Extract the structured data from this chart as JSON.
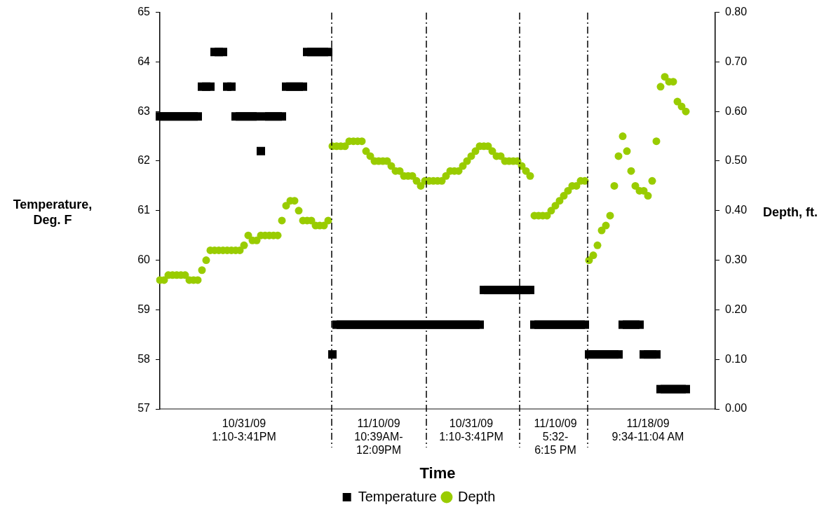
{
  "chart_data": {
    "type": "scatter",
    "xlabel": "Time",
    "ylabel": "Temperature,\nDeg. F",
    "y2label": "Depth, ft.",
    "categories": [
      null,
      null,
      null,
      null,
      null,
      null,
      null,
      null,
      null,
      null,
      null,
      null,
      null,
      null,
      null,
      null,
      null,
      null,
      null,
      null,
      "10/31/09\n1:10-3:41PM",
      null,
      null,
      null,
      null,
      null,
      null,
      null,
      null,
      null,
      null,
      null,
      null,
      null,
      null,
      null,
      null,
      null,
      null,
      null,
      null,
      null,
      null,
      null,
      null,
      null,
      null,
      null,
      null,
      null,
      null,
      null,
      "11/10/09\n10:39AM-\n12:09PM",
      null,
      null,
      null,
      null,
      null,
      null,
      null,
      null,
      null,
      null,
      null,
      null,
      null,
      null,
      null,
      null,
      null,
      null,
      null,
      null,
      null,
      "10/31/09\n1:10-3:41PM",
      null,
      null,
      null,
      null,
      null,
      null,
      null,
      null,
      null,
      null,
      null,
      null,
      null,
      null,
      null,
      null,
      null,
      null,
      null,
      "11/10/09\n5:32-\n6:15 PM",
      null,
      null,
      null,
      null,
      null,
      null,
      null,
      null,
      null,
      null,
      null,
      null,
      null,
      null,
      null,
      null,
      null,
      null,
      null,
      null,
      null,
      "11/18/09\n9:34-11:04 AM",
      null,
      null,
      null,
      null,
      null,
      null,
      null,
      null,
      null,
      null,
      null,
      null,
      null,
      null,
      null,
      null
    ],
    "series": [
      {
        "name": "Temperature",
        "color": "#000000",
        "marker": "square",
        "values": [
          62.9,
          62.9,
          62.9,
          62.9,
          62.9,
          62.9,
          62.9,
          62.9,
          62.9,
          62.9,
          63.5,
          63.5,
          63.5,
          64.2,
          64.2,
          64.2,
          63.5,
          63.5,
          62.9,
          62.9,
          62.9,
          62.9,
          62.9,
          62.9,
          62.2,
          62.9,
          62.9,
          62.9,
          62.9,
          62.9,
          63.5,
          63.5,
          63.5,
          63.5,
          63.5,
          64.2,
          64.2,
          64.2,
          64.2,
          64.2,
          64.2,
          58.1,
          58.7,
          58.7,
          58.7,
          58.7,
          58.7,
          58.7,
          58.7,
          58.7,
          58.7,
          58.7,
          58.7,
          58.7,
          58.7,
          58.7,
          58.7,
          58.7,
          58.7,
          58.7,
          58.7,
          58.7,
          58.7,
          58.7,
          58.7,
          58.7,
          58.7,
          58.7,
          58.7,
          58.7,
          58.7,
          58.7,
          58.7,
          58.7,
          58.7,
          58.7,
          58.7,
          59.4,
          59.4,
          59.4,
          59.4,
          59.4,
          59.4,
          59.4,
          59.4,
          59.4,
          59.4,
          59.4,
          59.4,
          58.7,
          58.7,
          58.7,
          58.7,
          58.7,
          58.7,
          58.7,
          58.7,
          58.7,
          58.7,
          58.7,
          58.7,
          58.7,
          58.1,
          58.1,
          58.1,
          58.1,
          58.1,
          58.1,
          58.1,
          58.1,
          58.7,
          58.7,
          58.7,
          58.7,
          58.7,
          58.1,
          58.1,
          58.1,
          58.1,
          57.4,
          57.4,
          57.4,
          57.4,
          57.4,
          57.4,
          57.4,
          null,
          null,
          null,
          null,
          null,
          null,
          null
        ]
      },
      {
        "name": "Depth",
        "color": "#99cc00",
        "marker": "circle",
        "axis": "y2",
        "values": [
          0.26,
          0.26,
          0.27,
          0.27,
          0.27,
          0.27,
          0.27,
          0.26,
          0.26,
          0.26,
          0.28,
          0.3,
          0.32,
          0.32,
          0.32,
          0.32,
          0.32,
          0.32,
          0.32,
          0.32,
          0.33,
          0.35,
          0.34,
          0.34,
          0.35,
          0.35,
          0.35,
          0.35,
          0.35,
          0.38,
          0.41,
          0.42,
          0.42,
          0.4,
          0.38,
          0.38,
          0.38,
          0.37,
          0.37,
          0.37,
          0.38,
          0.53,
          0.53,
          0.53,
          0.53,
          0.54,
          0.54,
          0.54,
          0.54,
          0.52,
          0.51,
          0.5,
          0.5,
          0.5,
          0.5,
          0.49,
          0.48,
          0.48,
          0.47,
          0.47,
          0.47,
          0.46,
          0.45,
          0.46,
          0.46,
          0.46,
          0.46,
          0.46,
          0.47,
          0.48,
          0.48,
          0.48,
          0.49,
          0.5,
          0.51,
          0.52,
          0.53,
          0.53,
          0.53,
          0.52,
          0.51,
          0.51,
          0.5,
          0.5,
          0.5,
          0.5,
          0.49,
          0.48,
          0.47,
          0.39,
          0.39,
          0.39,
          0.39,
          0.4,
          0.41,
          0.42,
          0.43,
          0.44,
          0.45,
          0.45,
          0.46,
          0.46,
          0.3,
          0.31,
          0.33,
          0.36,
          0.37,
          0.39,
          0.45,
          0.51,
          0.55,
          0.52,
          0.48,
          0.45,
          0.44,
          0.44,
          0.43,
          0.46,
          0.54,
          0.65,
          0.67,
          0.66,
          0.66,
          0.62,
          0.61,
          0.6,
          null,
          null,
          null,
          null,
          null,
          null,
          null
        ]
      }
    ],
    "ylim": [
      57,
      65
    ],
    "yticks": [
      57,
      58,
      59,
      60,
      61,
      62,
      63,
      64,
      65
    ],
    "y2lim": [
      0,
      0.8
    ],
    "y2ticks": [
      {
        "value": 0,
        "label": "0.00"
      },
      {
        "value": 0.1,
        "label": "0.10"
      },
      {
        "value": 0.2,
        "label": "0.20"
      },
      {
        "value": 0.3,
        "label": "0.30"
      },
      {
        "value": 0.4,
        "label": "0.40"
      },
      {
        "value": 0.5,
        "label": "0.50"
      },
      {
        "value": 0.6,
        "label": "0.60"
      },
      {
        "value": 0.7,
        "label": "0.70"
      },
      {
        "value": 0.8,
        "label": "0.80"
      }
    ],
    "grid": false,
    "legend": "bottom"
  }
}
